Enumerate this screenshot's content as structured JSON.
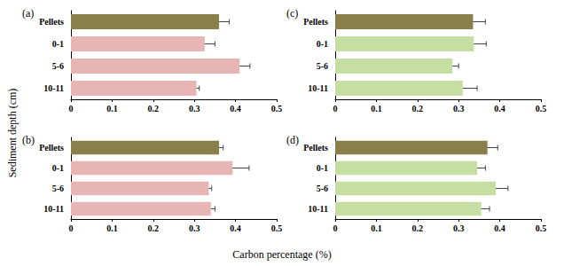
{
  "ylabel": "Sediment depth (cm)",
  "xlabel": "Carbon percentage (%)",
  "chart_data": [
    {
      "type": "bar",
      "orientation": "horizontal",
      "title": "(a)",
      "categories": [
        "Pellets",
        "0-1",
        "5-6",
        "10-11"
      ],
      "values": [
        0.36,
        0.325,
        0.41,
        0.305
      ],
      "errors": [
        0.025,
        0.025,
        0.025,
        0.007
      ],
      "colors": [
        "#8a7e4a",
        "#e7b5b3",
        "#e7b5b3",
        "#e7b5b3"
      ],
      "xlim": [
        0,
        0.5
      ],
      "xticks": [
        0,
        0.1,
        0.2,
        0.3,
        0.4,
        0.5
      ],
      "grid": false
    },
    {
      "type": "bar",
      "orientation": "horizontal",
      "title": "(b)",
      "categories": [
        "Pellets",
        "0-1",
        "5-6",
        "10-11"
      ],
      "values": [
        0.36,
        0.393,
        0.335,
        0.34
      ],
      "errors": [
        0.01,
        0.04,
        0.007,
        0.01
      ],
      "colors": [
        "#8a7e4a",
        "#e7b5b3",
        "#e7b5b3",
        "#e7b5b3"
      ],
      "xlim": [
        0,
        0.5
      ],
      "xticks": [
        0,
        0.1,
        0.2,
        0.3,
        0.4,
        0.5
      ],
      "grid": false
    },
    {
      "type": "bar",
      "orientation": "horizontal",
      "title": "(c)",
      "categories": [
        "Pellets",
        "0-1",
        "5-6",
        "10-11"
      ],
      "values": [
        0.335,
        0.337,
        0.285,
        0.31
      ],
      "errors": [
        0.03,
        0.03,
        0.015,
        0.035
      ],
      "colors": [
        "#8a7e4a",
        "#c5dea2",
        "#c5dea2",
        "#c5dea2"
      ],
      "xlim": [
        0,
        0.5
      ],
      "xticks": [
        0,
        0.1,
        0.2,
        0.3,
        0.4,
        0.5
      ],
      "grid": false
    },
    {
      "type": "bar",
      "orientation": "horizontal",
      "title": "(d)",
      "categories": [
        "Pellets",
        "0-1",
        "5-6",
        "10-11"
      ],
      "values": [
        0.37,
        0.345,
        0.39,
        0.355
      ],
      "errors": [
        0.025,
        0.02,
        0.03,
        0.02
      ],
      "colors": [
        "#8a7e4a",
        "#c5dea2",
        "#c5dea2",
        "#c5dea2"
      ],
      "xlim": [
        0,
        0.5
      ],
      "xticks": [
        0,
        0.1,
        0.2,
        0.3,
        0.4,
        0.5
      ],
      "grid": false
    }
  ]
}
